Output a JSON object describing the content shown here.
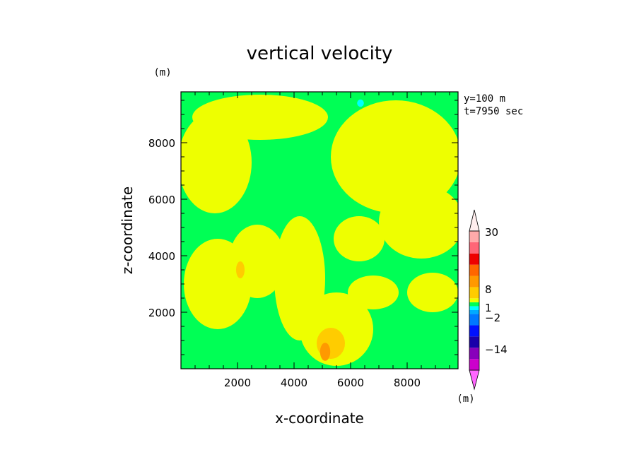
{
  "chart_data": {
    "type": "heatmap",
    "title": "vertical velocity",
    "xlabel": "x-coordinate",
    "ylabel": "z-coordinate",
    "y_unit": "(m)",
    "colorbar_unit": "(m)",
    "annotations": [
      "y=100 m",
      "t=7950 sec"
    ],
    "xlim": [
      0,
      9800
    ],
    "ylim": [
      0,
      9800
    ],
    "x_ticks": [
      2000,
      4000,
      6000,
      8000
    ],
    "y_ticks": [
      2000,
      4000,
      6000,
      8000
    ],
    "colorbar": {
      "labels": [
        {
          "value": 30,
          "text": "30"
        },
        {
          "value": 8,
          "text": "8"
        },
        {
          "value": 1,
          "text": "1"
        },
        {
          "value": -2,
          "text": "−2"
        },
        {
          "value": -14,
          "text": "−14"
        }
      ],
      "levels": [
        {
          "color": "#ff66ff"
        },
        {
          "color": "#cc00cc"
        },
        {
          "color": "#8800bb"
        },
        {
          "color": "#1a00aa"
        },
        {
          "color": "#0011ff"
        },
        {
          "color": "#0077ff"
        },
        {
          "color": "#00aaff"
        },
        {
          "color": "#00ffff"
        },
        {
          "color": "#00ff55"
        },
        {
          "color": "#eeff00"
        },
        {
          "color": "#ffcc00"
        },
        {
          "color": "#ff9900"
        },
        {
          "color": "#ff6600"
        },
        {
          "color": "#ee0000"
        },
        {
          "color": "#ff6677"
        },
        {
          "color": "#ffaaaa"
        },
        {
          "color": "#ffeeee"
        }
      ]
    },
    "regions": [
      {
        "level": "w>1 (yellow)",
        "color": "#eeff00",
        "blobs": [
          {
            "x": 2800,
            "z": 8900,
            "rx": 2400,
            "rz": 800
          },
          {
            "x": 1200,
            "z": 7300,
            "rx": 1300,
            "rz": 1800
          },
          {
            "x": 7600,
            "z": 7500,
            "rx": 2300,
            "rz": 2000
          },
          {
            "x": 8500,
            "z": 5200,
            "rx": 1500,
            "rz": 1300
          },
          {
            "x": 1300,
            "z": 3000,
            "rx": 1200,
            "rz": 1600
          },
          {
            "x": 2700,
            "z": 3800,
            "rx": 1000,
            "rz": 1300
          },
          {
            "x": 4200,
            "z": 3200,
            "rx": 900,
            "rz": 2200
          },
          {
            "x": 5500,
            "z": 1400,
            "rx": 1300,
            "rz": 1300
          },
          {
            "x": 6300,
            "z": 4600,
            "rx": 900,
            "rz": 800
          },
          {
            "x": 8900,
            "z": 2700,
            "rx": 900,
            "rz": 700
          },
          {
            "x": 6800,
            "z": 2700,
            "rx": 900,
            "rz": 600
          }
        ]
      },
      {
        "level": "w>4 (orange)",
        "color": "#ffcc00",
        "blobs": [
          {
            "x": 5300,
            "z": 900,
            "rx": 500,
            "rz": 550
          },
          {
            "x": 2100,
            "z": 3500,
            "rx": 150,
            "rz": 300
          }
        ]
      },
      {
        "level": "w>6 (dark orange)",
        "color": "#ff9900",
        "blobs": [
          {
            "x": 5100,
            "z": 600,
            "rx": 180,
            "rz": 320
          }
        ]
      },
      {
        "level": "w<-1 (cyan)",
        "color": "#00ffff",
        "blobs": [
          {
            "x": 6350,
            "z": 9400,
            "rx": 120,
            "rz": 130
          }
        ]
      }
    ],
    "background_level": {
      "level": "-1..1 (green)",
      "color": "#00ff55"
    }
  }
}
